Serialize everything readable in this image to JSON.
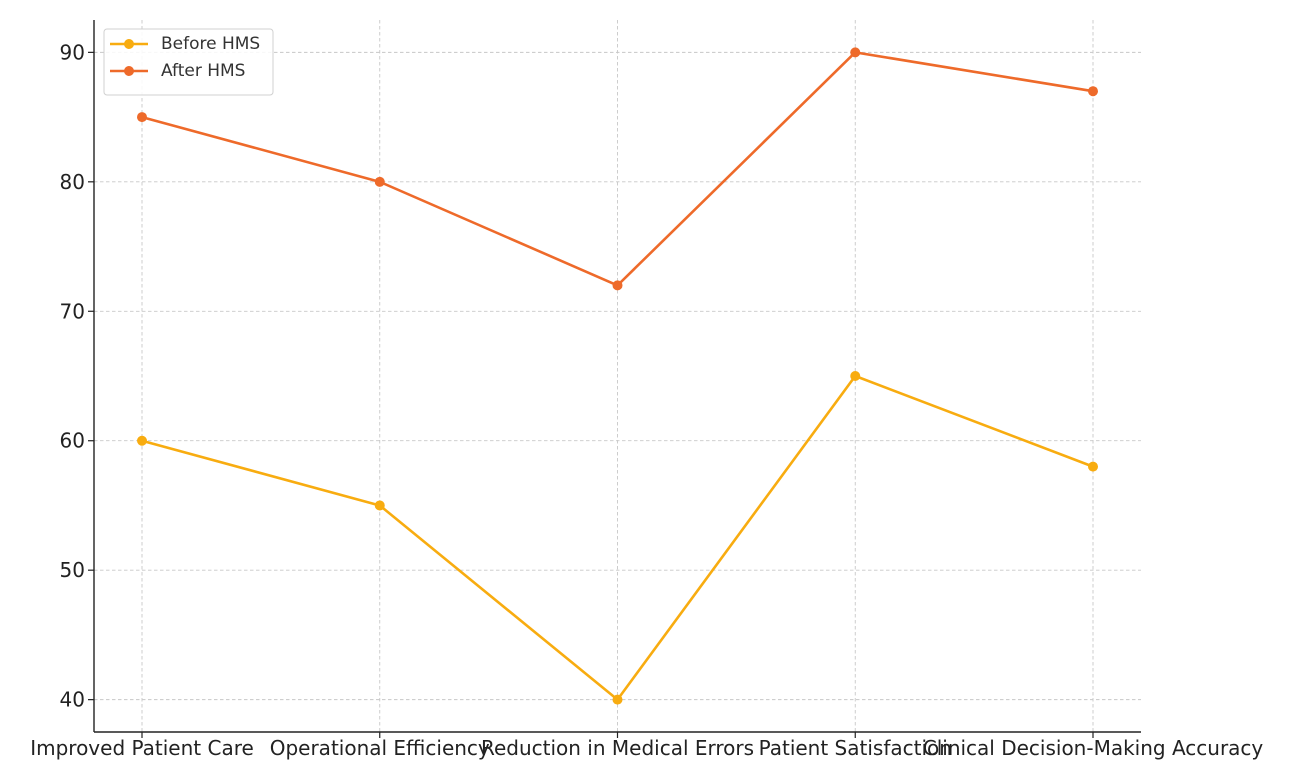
{
  "chart_data": {
    "type": "line",
    "title": "",
    "xlabel": "",
    "ylabel": "",
    "categories": [
      "Improved Patient Care",
      "Operational Efficiency",
      "Reduction in Medical Errors",
      "Patient Satisfaction",
      "Clinical Decision-Making Accuracy"
    ],
    "series": [
      {
        "name": "Before HMS",
        "values": [
          60,
          55,
          40,
          65,
          58
        ],
        "color": "#f8ac10"
      },
      {
        "name": "After HMS",
        "values": [
          85,
          80,
          72,
          90,
          87
        ],
        "color": "#ee6a2a"
      }
    ],
    "ylim": [
      37.5,
      92.5
    ],
    "yticks": [
      40,
      50,
      60,
      70,
      80,
      90
    ],
    "grid": true,
    "legend_position": "top-left"
  }
}
